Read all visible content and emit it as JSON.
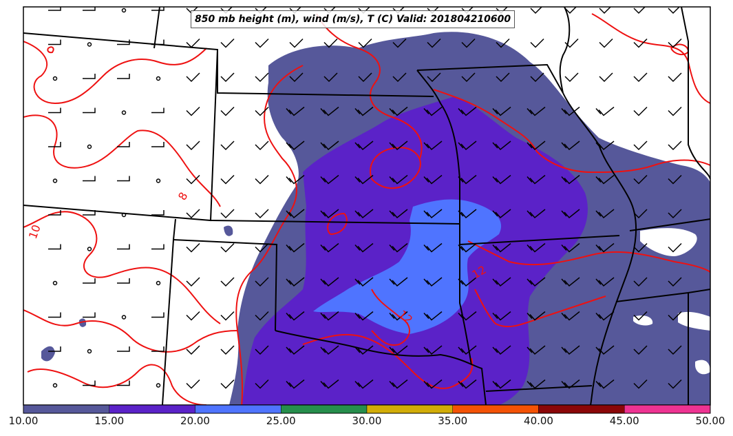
{
  "title": "850 mb height (m), wind (m/s), T (C) Valid: 201804210600",
  "colorbar": {
    "ticks": [
      "10.00",
      "15.00",
      "20.00",
      "25.00",
      "30.00",
      "35.00",
      "40.00",
      "45.00",
      "50.00"
    ],
    "colors": [
      "#56589a",
      "#5b22c8",
      "#4f74ff",
      "#268e4c",
      "#d2ad08",
      "#f45205",
      "#8b0608",
      "#ee3392"
    ]
  },
  "contour_labels": [
    "8",
    "10",
    "12",
    "12"
  ],
  "colors": {
    "contour": "#ee1111",
    "state_lines": "#000000",
    "wind_barbs": "#000000"
  }
}
